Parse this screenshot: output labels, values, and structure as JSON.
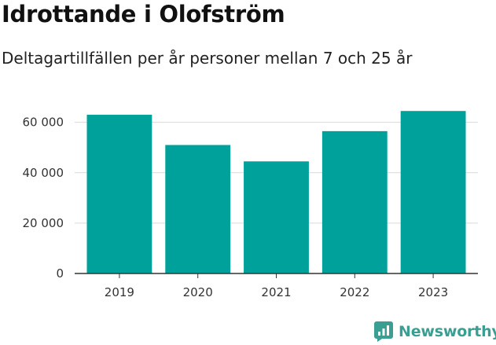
{
  "title": "Idrottande i Olofström",
  "subtitle": "Deltagartillfällen per år personer mellan 7 och 25 år",
  "chart_data": {
    "type": "bar",
    "categories": [
      "2019",
      "2020",
      "2021",
      "2022",
      "2023"
    ],
    "values": [
      63000,
      51000,
      44500,
      56500,
      64500
    ],
    "yticks": [
      0,
      20000,
      40000,
      60000
    ],
    "ytick_labels": [
      "0",
      "20 000",
      "40 000",
      "60 000"
    ],
    "ylim": [
      0,
      68000
    ],
    "grid": true,
    "bar_color": "#00A19A"
  },
  "brand": {
    "name": "Newsworthy",
    "color": "#3a9e93",
    "icon": "newsworthy-logo-icon"
  }
}
